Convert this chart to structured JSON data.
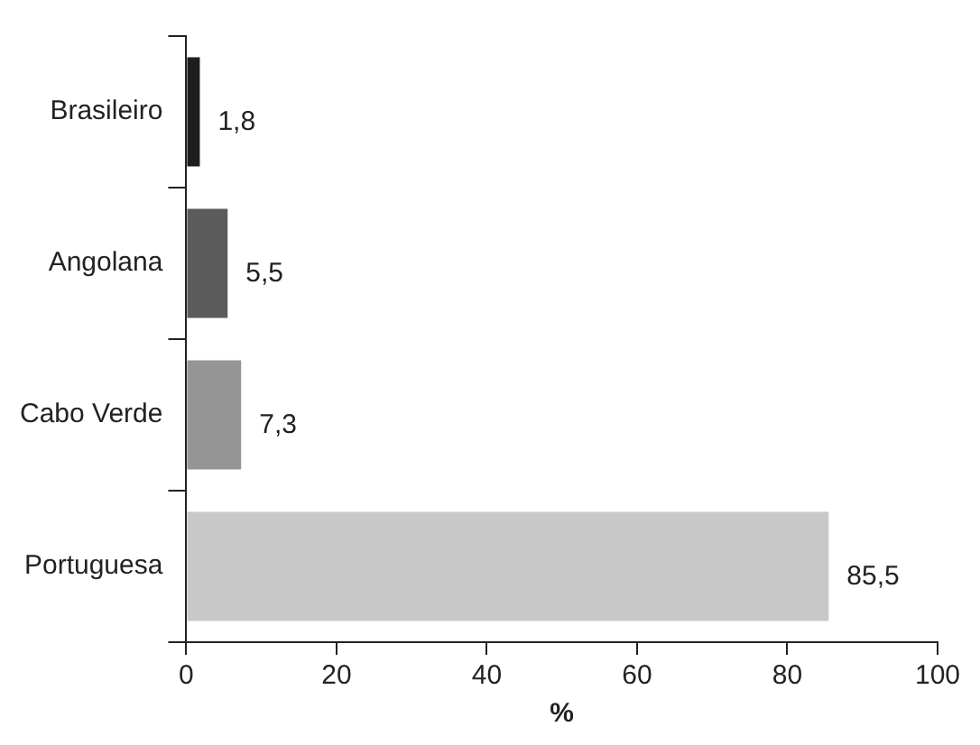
{
  "chart_data": {
    "type": "bar",
    "orientation": "horizontal",
    "categories": [
      "Brasileiro",
      "Angolana",
      "Cabo Verde",
      "Portuguesa"
    ],
    "values": [
      1.8,
      5.5,
      7.3,
      85.5
    ],
    "colors": [
      "#1e1e1e",
      "#5c5c5c",
      "#959595",
      "#c8c8c8"
    ],
    "value_labels": [
      "1,8",
      "5,5",
      "7,3",
      "85,5"
    ],
    "xlabel": "%",
    "xlim": [
      0,
      100
    ],
    "xticks": [
      0,
      20,
      40,
      60,
      80,
      100
    ]
  }
}
